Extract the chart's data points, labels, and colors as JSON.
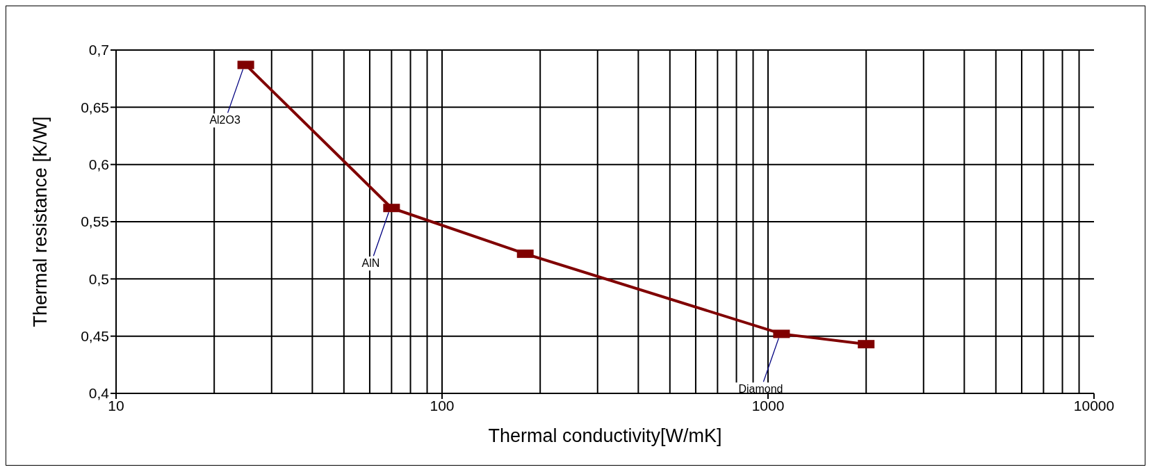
{
  "chart_data": {
    "type": "line",
    "xlabel": "Thermal conductivity[W/mK]",
    "ylabel": "Thermal resistance [K/W]",
    "x": [
      25,
      70,
      180,
      1100,
      2000
    ],
    "series": [
      {
        "color": "#800000",
        "values": [
          0.687,
          0.562,
          0.522,
          0.452,
          0.443
        ]
      }
    ],
    "log": "x",
    "xlim": [
      10,
      10000
    ],
    "xticks": [
      10,
      100,
      1000,
      10000
    ],
    "ylim": [
      0.4,
      0.7
    ],
    "yticks": [
      {
        "value": 0.4,
        "label": "0,4"
      },
      {
        "value": 0.45,
        "label": "0,45"
      },
      {
        "value": 0.5,
        "label": "0,5"
      },
      {
        "value": 0.55,
        "label": "0,55"
      },
      {
        "value": 0.6,
        "label": "0,6"
      },
      {
        "value": 0.65,
        "label": "0,65"
      },
      {
        "value": 0.7,
        "label": "0,7"
      }
    ],
    "grid": true,
    "marker": "square",
    "line_style": "solid",
    "annotations": [
      {
        "text": "Al2O3",
        "x": 25,
        "y": 0.687
      },
      {
        "text": "AlN",
        "x": 70,
        "y": 0.562
      },
      {
        "text": "Diamond",
        "x": 1100,
        "y": 0.452
      }
    ]
  }
}
